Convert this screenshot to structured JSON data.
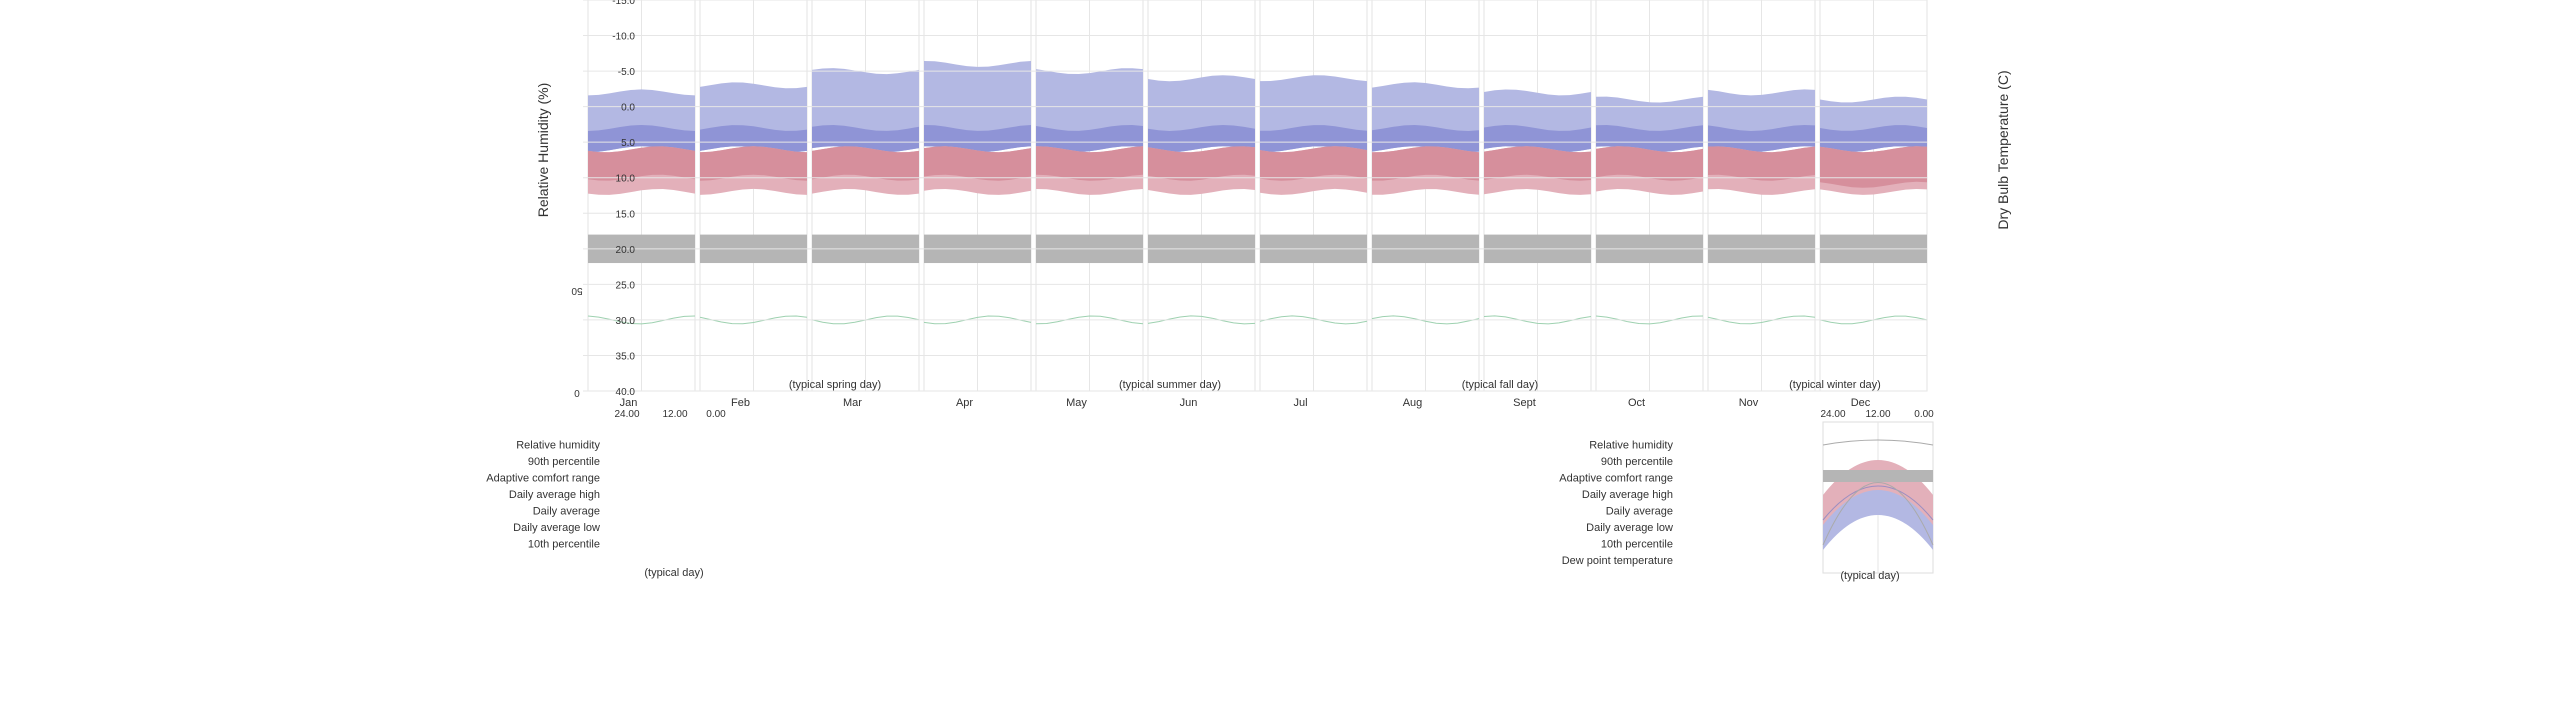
{
  "chart_data": {
    "type": "area",
    "months": [
      "Jan",
      "Feb",
      "Mar",
      "Apr",
      "May",
      "Jun",
      "Jul",
      "Aug",
      "Sept",
      "Oct",
      "Nov",
      "Dec"
    ],
    "seasons": [
      "(typical spring day)",
      "(typical summer day)",
      "(typical fall day)",
      "(typical winter day)"
    ],
    "y_left_label": "Dry Bulb Temperature (C)",
    "y_left_ticks": [
      "-15.0",
      "-10.0",
      "-5.0",
      "0.0",
      "5.0",
      "10.0",
      "15.0",
      "20.0",
      "25.0",
      "30.0",
      "35.0",
      "40.0"
    ],
    "y_left_range": [
      -15,
      40
    ],
    "y_right_label": "Relative Humidity (%)",
    "y_right_ticks": [
      "0",
      "50"
    ],
    "legend_left": {
      "title": "(typical day)",
      "x_ticks": [
        "0.00",
        "12.00",
        "24.00"
      ],
      "items": [
        "Dew point temperature",
        "10th percentile",
        "Daily average low",
        "Daily average",
        "Daily average high",
        "Adaptive comfort range",
        "90th percentile",
        "Relative humidity"
      ]
    },
    "legend_right": {
      "title": "(typical day)",
      "x_ticks": [
        "0.00",
        "12.00",
        "24.00"
      ],
      "items": [
        "10th percentile",
        "Daily average low",
        "Daily average",
        "Daily average high",
        "Adaptive comfort range",
        "90th percentile",
        "Relative humidity"
      ]
    },
    "series": [
      {
        "name": "10th percentile",
        "values": [
          -1,
          -2,
          -1,
          -2,
          -3,
          -4,
          -4,
          -5,
          -6,
          -5,
          -3,
          -2
        ]
      },
      {
        "name": "Daily average low",
        "values": [
          3,
          3,
          3,
          3,
          3,
          3,
          3,
          3,
          3,
          3,
          3,
          3
        ]
      },
      {
        "name": "Daily average",
        "values": [
          6,
          6,
          6,
          6,
          6,
          6,
          6,
          6,
          6,
          6,
          6,
          6
        ]
      },
      {
        "name": "Daily average high",
        "values": [
          11,
          10,
          10,
          10,
          10,
          10,
          10,
          10,
          10,
          10,
          10,
          10
        ]
      },
      {
        "name": "90th percentile",
        "values": [
          12,
          12,
          12,
          12,
          12,
          12,
          12,
          12,
          12,
          12,
          12,
          12
        ]
      },
      {
        "name": "Adaptive comfort range",
        "values": [
          [
            18,
            22
          ],
          [
            18,
            22
          ],
          [
            18,
            22
          ],
          [
            18,
            22
          ],
          [
            18,
            22
          ],
          [
            18,
            22
          ],
          [
            18,
            22
          ],
          [
            18,
            22
          ],
          [
            18,
            22
          ],
          [
            18,
            22
          ],
          [
            18,
            22
          ],
          [
            18,
            22
          ]
        ]
      },
      {
        "name": "Relative humidity",
        "values": [
          30,
          30,
          30,
          30,
          30,
          30,
          30,
          30,
          30,
          30,
          30,
          30
        ]
      }
    ],
    "colors": {
      "cold_band": "#b3b8e3",
      "cold_core": "#8f94d6",
      "warm_band": "#e3b0ba",
      "warm_core": "#d68f9c",
      "comfort": "#b5b5b5",
      "humidity": "#9ed1b0",
      "grid": "#e6e6e6"
    }
  }
}
